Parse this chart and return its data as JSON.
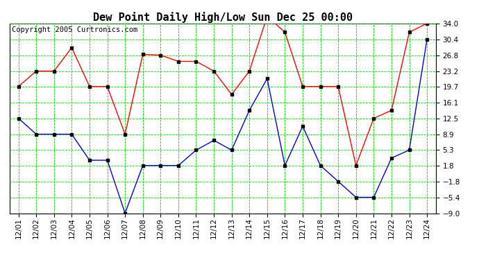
{
  "title": "Dew Point Daily High/Low Sun Dec 25 00:00",
  "copyright": "Copyright 2005 Curtronics.com",
  "x_labels": [
    "12/01",
    "12/02",
    "12/03",
    "12/04",
    "12/05",
    "12/06",
    "12/07",
    "12/08",
    "12/09",
    "12/10",
    "12/11",
    "12/12",
    "12/13",
    "12/14",
    "12/15",
    "12/16",
    "12/17",
    "12/18",
    "12/19",
    "12/20",
    "12/21",
    "12/22",
    "12/23",
    "12/24"
  ],
  "high_values": [
    19.7,
    23.2,
    23.2,
    28.5,
    19.7,
    19.7,
    8.9,
    27.0,
    26.8,
    25.4,
    25.4,
    23.2,
    17.9,
    23.2,
    35.6,
    32.0,
    19.7,
    19.7,
    19.7,
    1.8,
    12.5,
    14.3,
    32.0,
    34.0
  ],
  "low_values": [
    12.5,
    8.9,
    8.9,
    8.9,
    3.0,
    3.0,
    -9.0,
    1.8,
    1.8,
    1.8,
    5.3,
    7.5,
    5.3,
    14.3,
    21.5,
    1.8,
    10.7,
    1.8,
    -1.8,
    -5.4,
    -5.4,
    3.5,
    5.3,
    30.4
  ],
  "y_ticks": [
    34.0,
    30.4,
    26.8,
    23.2,
    19.7,
    16.1,
    12.5,
    8.9,
    5.3,
    1.8,
    -1.8,
    -5.4,
    -9.0
  ],
  "y_min": -9.0,
  "y_max": 34.0,
  "high_color": "#FF0000",
  "low_color": "#0000CC",
  "grid_color": "#00CC00",
  "bg_color": "#FFFFFF",
  "plot_bg_color": "#FFFFFF",
  "title_fontsize": 11,
  "tick_fontsize": 7.5,
  "copyright_fontsize": 7.5
}
